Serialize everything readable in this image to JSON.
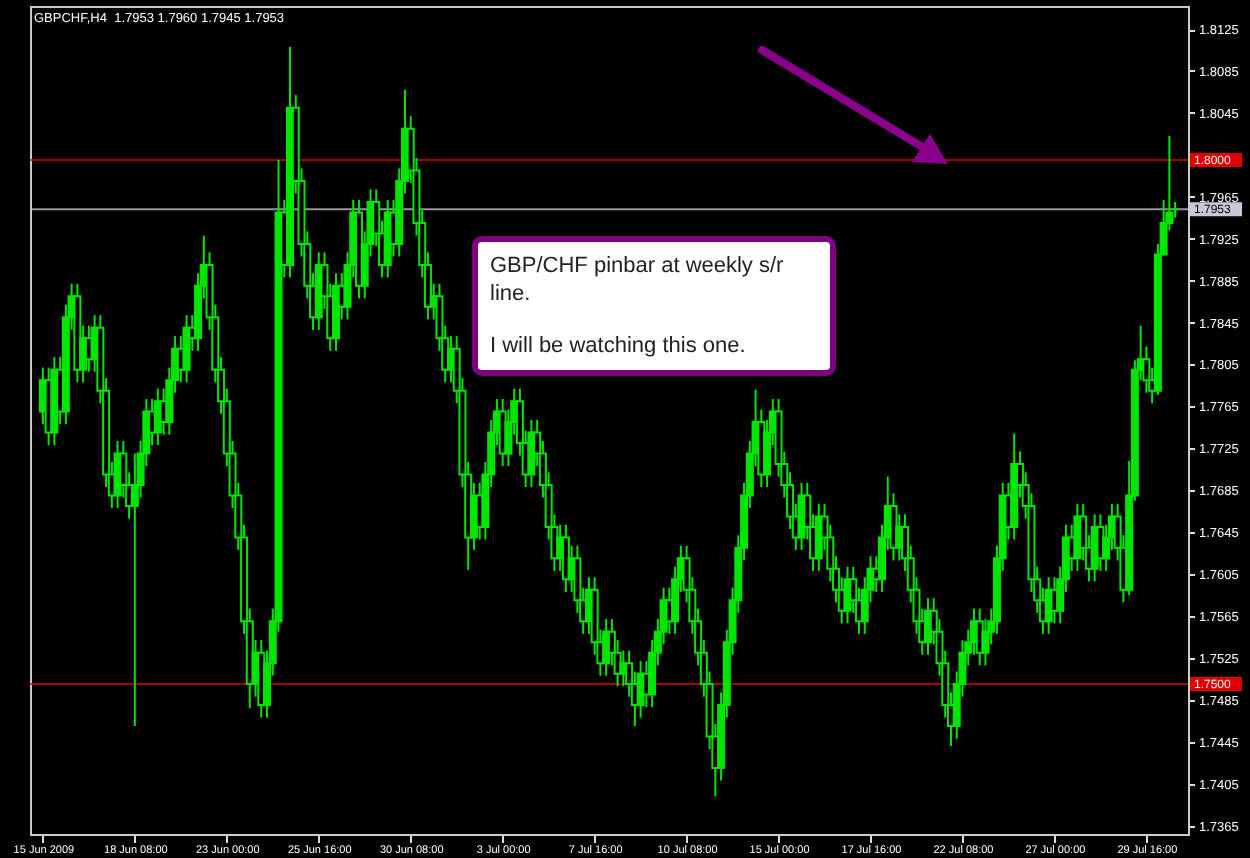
{
  "chart_data": {
    "type": "candlestick",
    "title": "GBPCHF,H4  1.7953 1.7960 1.7945 1.7953",
    "annotations": [
      "GBP/CHF pinbar at weekly s/r line.",
      "I will be watching this one."
    ],
    "color": "#00e600",
    "ylim": [
      1.7357,
      1.8147
    ],
    "yticks": [
      1.7365,
      1.7405,
      1.7445,
      1.7485,
      1.7525,
      1.7565,
      1.7605,
      1.7645,
      1.7685,
      1.7725,
      1.7765,
      1.7805,
      1.7845,
      1.7885,
      1.7925,
      1.7965,
      1.8045,
      1.8085,
      1.8125
    ],
    "ref_lines": [
      {
        "axis": "y",
        "value": 1.8,
        "label": "1.8000",
        "color": "#e00000"
      },
      {
        "axis": "y",
        "value": 1.75,
        "label": "1.7500",
        "color": "#e00000"
      },
      {
        "axis": "y",
        "value": 1.7953,
        "label": "1.7953",
        "color": "#c8c8d8"
      }
    ],
    "categories": [
      "15 Jun 2009",
      null,
      null,
      null,
      null,
      null,
      null,
      null,
      null,
      null,
      null,
      null,
      null,
      null,
      null,
      null,
      "18 Jun 08:00",
      null,
      null,
      null,
      null,
      null,
      null,
      null,
      null,
      null,
      null,
      null,
      null,
      null,
      null,
      null,
      "23 Jun 00:00",
      null,
      null,
      null,
      null,
      null,
      null,
      null,
      null,
      null,
      null,
      null,
      null,
      null,
      null,
      null,
      "25 Jun 16:00",
      null,
      null,
      null,
      null,
      null,
      null,
      null,
      null,
      null,
      null,
      null,
      null,
      null,
      null,
      null,
      "30 Jun 08:00",
      null,
      null,
      null,
      null,
      null,
      null,
      null,
      null,
      null,
      null,
      null,
      null,
      null,
      null,
      null,
      "3 Jul 00:00",
      null,
      null,
      null,
      null,
      null,
      null,
      null,
      null,
      null,
      null,
      null,
      null,
      null,
      null,
      null,
      "7 Jul 16:00",
      null,
      null,
      null,
      null,
      null,
      null,
      null,
      null,
      null,
      null,
      null,
      null,
      null,
      null,
      null,
      "10 Jul 08:00",
      null,
      null,
      null,
      null,
      null,
      null,
      null,
      null,
      null,
      null,
      null,
      null,
      null,
      null,
      null,
      "15 Jul 00:00",
      null,
      null,
      null,
      null,
      null,
      null,
      null,
      null,
      null,
      null,
      null,
      null,
      null,
      null,
      null,
      "17 Jul 16:00",
      null,
      null,
      null,
      null,
      null,
      null,
      null,
      null,
      null,
      null,
      null,
      null,
      null,
      null,
      null,
      "22 Jul 08:00",
      null,
      null,
      null,
      null,
      null,
      null,
      null,
      null,
      null,
      null,
      null,
      null,
      null,
      null,
      null,
      "27 Jul 00:00",
      null,
      null,
      null,
      null,
      null,
      null,
      null,
      null,
      null,
      null,
      null,
      null,
      null,
      null,
      null,
      "29 Jul 16:00",
      null,
      null,
      null,
      null,
      null
    ],
    "ohlc": [
      [
        1.776,
        1.7802,
        1.7748,
        1.779
      ],
      [
        1.779,
        1.7802,
        1.7728,
        1.774
      ],
      [
        1.774,
        1.7812,
        1.7728,
        1.78
      ],
      [
        1.78,
        1.7812,
        1.7748,
        1.776
      ],
      [
        1.776,
        1.7862,
        1.7748,
        1.785
      ],
      [
        1.785,
        1.7882,
        1.7838,
        1.787
      ],
      [
        1.787,
        1.7882,
        1.7788,
        1.78
      ],
      [
        1.78,
        1.7842,
        1.7788,
        1.783
      ],
      [
        1.783,
        1.7842,
        1.7798,
        1.781
      ],
      [
        1.781,
        1.7852,
        1.7798,
        1.784
      ],
      [
        1.784,
        1.7852,
        1.7768,
        1.778
      ],
      [
        1.778,
        1.7792,
        1.7688,
        1.77
      ],
      [
        1.77,
        1.7712,
        1.7668,
        1.768
      ],
      [
        1.768,
        1.7732,
        1.7668,
        1.772
      ],
      [
        1.772,
        1.7732,
        1.7678,
        1.769
      ],
      [
        1.769,
        1.7702,
        1.7658,
        1.767
      ],
      [
        1.767,
        1.772,
        1.746,
        1.769
      ],
      [
        1.769,
        1.7732,
        1.7678,
        1.772
      ],
      [
        1.772,
        1.7772,
        1.7708,
        1.776
      ],
      [
        1.776,
        1.7772,
        1.7728,
        1.774
      ],
      [
        1.774,
        1.7782,
        1.7728,
        1.777
      ],
      [
        1.777,
        1.7782,
        1.7738,
        1.775
      ],
      [
        1.775,
        1.7802,
        1.7738,
        1.779
      ],
      [
        1.779,
        1.7832,
        1.7778,
        1.782
      ],
      [
        1.782,
        1.7832,
        1.7788,
        1.78
      ],
      [
        1.78,
        1.7852,
        1.7788,
        1.784
      ],
      [
        1.784,
        1.7852,
        1.7818,
        1.783
      ],
      [
        1.783,
        1.7892,
        1.7818,
        1.788
      ],
      [
        1.788,
        1.7928,
        1.7868,
        1.79
      ],
      [
        1.79,
        1.7912,
        1.7838,
        1.785
      ],
      [
        1.785,
        1.7862,
        1.7788,
        1.78
      ],
      [
        1.78,
        1.7812,
        1.7758,
        1.777
      ],
      [
        1.777,
        1.7782,
        1.7708,
        1.772
      ],
      [
        1.772,
        1.7732,
        1.7668,
        1.768
      ],
      [
        1.768,
        1.7692,
        1.7628,
        1.764
      ],
      [
        1.764,
        1.7652,
        1.7548,
        1.756
      ],
      [
        1.756,
        1.7572,
        1.7477,
        1.75
      ],
      [
        1.75,
        1.7542,
        1.7488,
        1.753
      ],
      [
        1.753,
        1.7542,
        1.7468,
        1.748
      ],
      [
        1.748,
        1.7532,
        1.7468,
        1.752
      ],
      [
        1.752,
        1.7572,
        1.7508,
        1.756
      ],
      [
        1.756,
        1.8,
        1.755,
        1.795
      ],
      [
        1.795,
        1.7962,
        1.7888,
        1.79
      ],
      [
        1.79,
        1.8108,
        1.7888,
        1.805
      ],
      [
        1.805,
        1.8062,
        1.7968,
        1.798
      ],
      [
        1.798,
        1.7992,
        1.7908,
        1.792
      ],
      [
        1.792,
        1.7932,
        1.7868,
        1.788
      ],
      [
        1.788,
        1.7892,
        1.7838,
        1.785
      ],
      [
        1.785,
        1.7912,
        1.7838,
        1.79
      ],
      [
        1.79,
        1.7912,
        1.7858,
        1.787
      ],
      [
        1.787,
        1.7882,
        1.7818,
        1.783
      ],
      [
        1.783,
        1.7892,
        1.7818,
        1.788
      ],
      [
        1.788,
        1.7892,
        1.7848,
        1.786
      ],
      [
        1.786,
        1.7912,
        1.7848,
        1.79
      ],
      [
        1.79,
        1.7962,
        1.7888,
        1.795
      ],
      [
        1.795,
        1.7962,
        1.7868,
        1.788
      ],
      [
        1.788,
        1.7932,
        1.7868,
        1.792
      ],
      [
        1.792,
        1.7972,
        1.7908,
        1.796
      ],
      [
        1.796,
        1.7972,
        1.7918,
        1.793
      ],
      [
        1.793,
        1.7942,
        1.7888,
        1.79
      ],
      [
        1.79,
        1.7962,
        1.7888,
        1.795
      ],
      [
        1.795,
        1.7962,
        1.7908,
        1.792
      ],
      [
        1.792,
        1.7992,
        1.7908,
        1.798
      ],
      [
        1.798,
        1.8067,
        1.7968,
        1.803
      ],
      [
        1.803,
        1.8042,
        1.7978,
        1.799
      ],
      [
        1.799,
        1.8002,
        1.7928,
        1.794
      ],
      [
        1.794,
        1.7952,
        1.7888,
        1.79
      ],
      [
        1.79,
        1.7912,
        1.7848,
        1.786
      ],
      [
        1.786,
        1.7882,
        1.7848,
        1.787
      ],
      [
        1.787,
        1.7882,
        1.7818,
        1.783
      ],
      [
        1.783,
        1.7842,
        1.7788,
        1.78
      ],
      [
        1.78,
        1.7832,
        1.7788,
        1.782
      ],
      [
        1.782,
        1.7832,
        1.7768,
        1.778
      ],
      [
        1.778,
        1.7792,
        1.7688,
        1.77
      ],
      [
        1.77,
        1.7712,
        1.7609,
        1.764
      ],
      [
        1.764,
        1.7692,
        1.7628,
        1.768
      ],
      [
        1.768,
        1.7692,
        1.7638,
        1.765
      ],
      [
        1.765,
        1.7712,
        1.7638,
        1.77
      ],
      [
        1.77,
        1.7752,
        1.7688,
        1.774
      ],
      [
        1.774,
        1.7772,
        1.7728,
        1.776
      ],
      [
        1.776,
        1.7772,
        1.7708,
        1.772
      ],
      [
        1.772,
        1.7762,
        1.7708,
        1.775
      ],
      [
        1.775,
        1.7782,
        1.7738,
        1.777
      ],
      [
        1.777,
        1.7782,
        1.7718,
        1.773
      ],
      [
        1.773,
        1.7742,
        1.7688,
        1.77
      ],
      [
        1.77,
        1.7752,
        1.7688,
        1.774
      ],
      [
        1.774,
        1.7752,
        1.7708,
        1.772
      ],
      [
        1.772,
        1.7732,
        1.7678,
        1.769
      ],
      [
        1.769,
        1.7702,
        1.7638,
        1.765
      ],
      [
        1.765,
        1.7662,
        1.7608,
        1.762
      ],
      [
        1.762,
        1.7652,
        1.7608,
        1.764
      ],
      [
        1.764,
        1.7652,
        1.7588,
        1.76
      ],
      [
        1.76,
        1.7632,
        1.7588,
        1.762
      ],
      [
        1.762,
        1.7632,
        1.7568,
        1.758
      ],
      [
        1.758,
        1.7592,
        1.7548,
        1.756
      ],
      [
        1.756,
        1.7602,
        1.7548,
        1.759
      ],
      [
        1.759,
        1.7602,
        1.7528,
        1.754
      ],
      [
        1.754,
        1.7552,
        1.7508,
        1.752
      ],
      [
        1.752,
        1.7562,
        1.7508,
        1.755
      ],
      [
        1.755,
        1.7562,
        1.7518,
        1.753
      ],
      [
        1.753,
        1.7542,
        1.7498,
        1.751
      ],
      [
        1.751,
        1.7532,
        1.7498,
        1.752
      ],
      [
        1.752,
        1.7532,
        1.7488,
        1.75
      ],
      [
        1.75,
        1.7512,
        1.746,
        1.748
      ],
      [
        1.748,
        1.7522,
        1.7468,
        1.751
      ],
      [
        1.751,
        1.7522,
        1.7478,
        1.749
      ],
      [
        1.749,
        1.7542,
        1.7478,
        1.753
      ],
      [
        1.753,
        1.7562,
        1.7518,
        1.755
      ],
      [
        1.755,
        1.7592,
        1.7538,
        1.758
      ],
      [
        1.758,
        1.7592,
        1.7548,
        1.756
      ],
      [
        1.756,
        1.7612,
        1.7548,
        1.76
      ],
      [
        1.76,
        1.7632,
        1.7588,
        1.762
      ],
      [
        1.762,
        1.7632,
        1.7578,
        1.759
      ],
      [
        1.759,
        1.7602,
        1.7548,
        1.756
      ],
      [
        1.756,
        1.7572,
        1.7518,
        1.753
      ],
      [
        1.753,
        1.7542,
        1.7488,
        1.75
      ],
      [
        1.75,
        1.7512,
        1.7438,
        1.745
      ],
      [
        1.745,
        1.7462,
        1.7393,
        1.742
      ],
      [
        1.742,
        1.7492,
        1.7408,
        1.748
      ],
      [
        1.748,
        1.7552,
        1.7468,
        1.754
      ],
      [
        1.754,
        1.7592,
        1.7528,
        1.758
      ],
      [
        1.758,
        1.7642,
        1.7568,
        1.763
      ],
      [
        1.763,
        1.7692,
        1.7618,
        1.768
      ],
      [
        1.768,
        1.7732,
        1.7668,
        1.772
      ],
      [
        1.772,
        1.7781,
        1.7708,
        1.775
      ],
      [
        1.775,
        1.7762,
        1.7688,
        1.77
      ],
      [
        1.77,
        1.7752,
        1.7688,
        1.774
      ],
      [
        1.774,
        1.7772,
        1.7728,
        1.776
      ],
      [
        1.776,
        1.7772,
        1.7698,
        1.771
      ],
      [
        1.771,
        1.7722,
        1.7678,
        1.769
      ],
      [
        1.769,
        1.7702,
        1.7648,
        1.766
      ],
      [
        1.766,
        1.7672,
        1.7628,
        1.764
      ],
      [
        1.764,
        1.7692,
        1.7628,
        1.768
      ],
      [
        1.768,
        1.7692,
        1.7638,
        1.765
      ],
      [
        1.765,
        1.7662,
        1.7608,
        1.762
      ],
      [
        1.762,
        1.7672,
        1.7608,
        1.766
      ],
      [
        1.766,
        1.7672,
        1.7628,
        1.764
      ],
      [
        1.764,
        1.7652,
        1.7598,
        1.761
      ],
      [
        1.761,
        1.7622,
        1.7578,
        1.759
      ],
      [
        1.759,
        1.7602,
        1.7558,
        1.757
      ],
      [
        1.757,
        1.7612,
        1.7558,
        1.76
      ],
      [
        1.76,
        1.7612,
        1.7568,
        1.758
      ],
      [
        1.758,
        1.7592,
        1.7548,
        1.756
      ],
      [
        1.756,
        1.7602,
        1.7548,
        1.759
      ],
      [
        1.759,
        1.7622,
        1.7578,
        1.761
      ],
      [
        1.761,
        1.7622,
        1.7588,
        1.76
      ],
      [
        1.76,
        1.7652,
        1.7588,
        1.764
      ],
      [
        1.764,
        1.7698,
        1.7628,
        1.767
      ],
      [
        1.767,
        1.7682,
        1.7618,
        1.763
      ],
      [
        1.763,
        1.7662,
        1.7618,
        1.765
      ],
      [
        1.765,
        1.7662,
        1.7608,
        1.762
      ],
      [
        1.762,
        1.7632,
        1.7578,
        1.759
      ],
      [
        1.759,
        1.7602,
        1.7548,
        1.756
      ],
      [
        1.756,
        1.7572,
        1.7528,
        1.754
      ],
      [
        1.754,
        1.7582,
        1.7528,
        1.757
      ],
      [
        1.757,
        1.7582,
        1.7538,
        1.755
      ],
      [
        1.755,
        1.7562,
        1.7508,
        1.752
      ],
      [
        1.752,
        1.7532,
        1.7468,
        1.748
      ],
      [
        1.748,
        1.7492,
        1.7441,
        1.746
      ],
      [
        1.746,
        1.7512,
        1.7448,
        1.75
      ],
      [
        1.75,
        1.7542,
        1.7488,
        1.753
      ],
      [
        1.753,
        1.7552,
        1.7518,
        1.754
      ],
      [
        1.754,
        1.7572,
        1.7528,
        1.756
      ],
      [
        1.756,
        1.7572,
        1.7518,
        1.753
      ],
      [
        1.753,
        1.7562,
        1.7518,
        1.755
      ],
      [
        1.755,
        1.7572,
        1.7538,
        1.756
      ],
      [
        1.756,
        1.7632,
        1.7548,
        1.762
      ],
      [
        1.762,
        1.7692,
        1.7608,
        1.768
      ],
      [
        1.768,
        1.7692,
        1.7638,
        1.765
      ],
      [
        1.765,
        1.7739,
        1.7638,
        1.771
      ],
      [
        1.771,
        1.7722,
        1.7678,
        1.769
      ],
      [
        1.769,
        1.7702,
        1.7658,
        1.767
      ],
      [
        1.767,
        1.7682,
        1.7588,
        1.76
      ],
      [
        1.76,
        1.7612,
        1.7568,
        1.758
      ],
      [
        1.758,
        1.7592,
        1.7548,
        1.756
      ],
      [
        1.756,
        1.7602,
        1.7548,
        1.759
      ],
      [
        1.759,
        1.7602,
        1.7558,
        1.757
      ],
      [
        1.757,
        1.7612,
        1.7558,
        1.76
      ],
      [
        1.76,
        1.7652,
        1.7588,
        1.764
      ],
      [
        1.764,
        1.7652,
        1.7608,
        1.762
      ],
      [
        1.762,
        1.7672,
        1.7608,
        1.766
      ],
      [
        1.766,
        1.7672,
        1.7618,
        1.763
      ],
      [
        1.763,
        1.7642,
        1.7598,
        1.761
      ],
      [
        1.761,
        1.7662,
        1.7598,
        1.765
      ],
      [
        1.765,
        1.7662,
        1.7608,
        1.762
      ],
      [
        1.762,
        1.7652,
        1.7608,
        1.764
      ],
      [
        1.764,
        1.7672,
        1.7628,
        1.766
      ],
      [
        1.766,
        1.7672,
        1.7618,
        1.763
      ],
      [
        1.763,
        1.7642,
        1.7578,
        1.759
      ],
      [
        1.759,
        1.7713,
        1.7585,
        1.768
      ],
      [
        1.768,
        1.7809,
        1.7675,
        1.78
      ],
      [
        1.78,
        1.7842,
        1.779,
        1.781
      ],
      [
        1.781,
        1.7822,
        1.7778,
        1.779
      ],
      [
        1.779,
        1.7802,
        1.7768,
        1.778
      ],
      [
        1.778,
        1.792,
        1.7776,
        1.791
      ],
      [
        1.791,
        1.7962,
        1.7909,
        1.794
      ],
      [
        1.794,
        1.8023,
        1.7933,
        1.795
      ],
      [
        1.7953,
        1.796,
        1.7945,
        1.7953
      ]
    ]
  }
}
